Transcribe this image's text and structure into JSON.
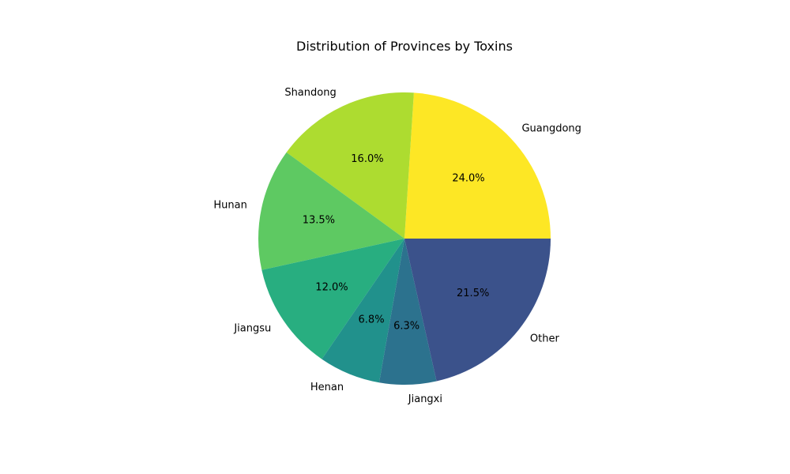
{
  "chart_data": {
    "type": "pie",
    "title": "Distribution of Provinces by Toxins",
    "start_angle_deg": 0,
    "direction": "counterclockwise",
    "slices": [
      {
        "label": "Guangdong",
        "value": 24.0,
        "pct_label": "24.0%",
        "color": "#fde725"
      },
      {
        "label": "Shandong",
        "value": 16.0,
        "pct_label": "16.0%",
        "color": "#addc30"
      },
      {
        "label": "Hunan",
        "value": 13.5,
        "pct_label": "13.5%",
        "color": "#5ec962"
      },
      {
        "label": "Jiangsu",
        "value": 12.0,
        "pct_label": "12.0%",
        "color": "#28ae80"
      },
      {
        "label": "Henan",
        "value": 6.8,
        "pct_label": "6.8%",
        "color": "#21918c"
      },
      {
        "label": "Jiangxi",
        "value": 6.3,
        "pct_label": "6.3%",
        "color": "#2c728e"
      },
      {
        "label": "Other",
        "value": 21.5,
        "pct_label": "21.5%",
        "color": "#3b528b"
      }
    ]
  }
}
